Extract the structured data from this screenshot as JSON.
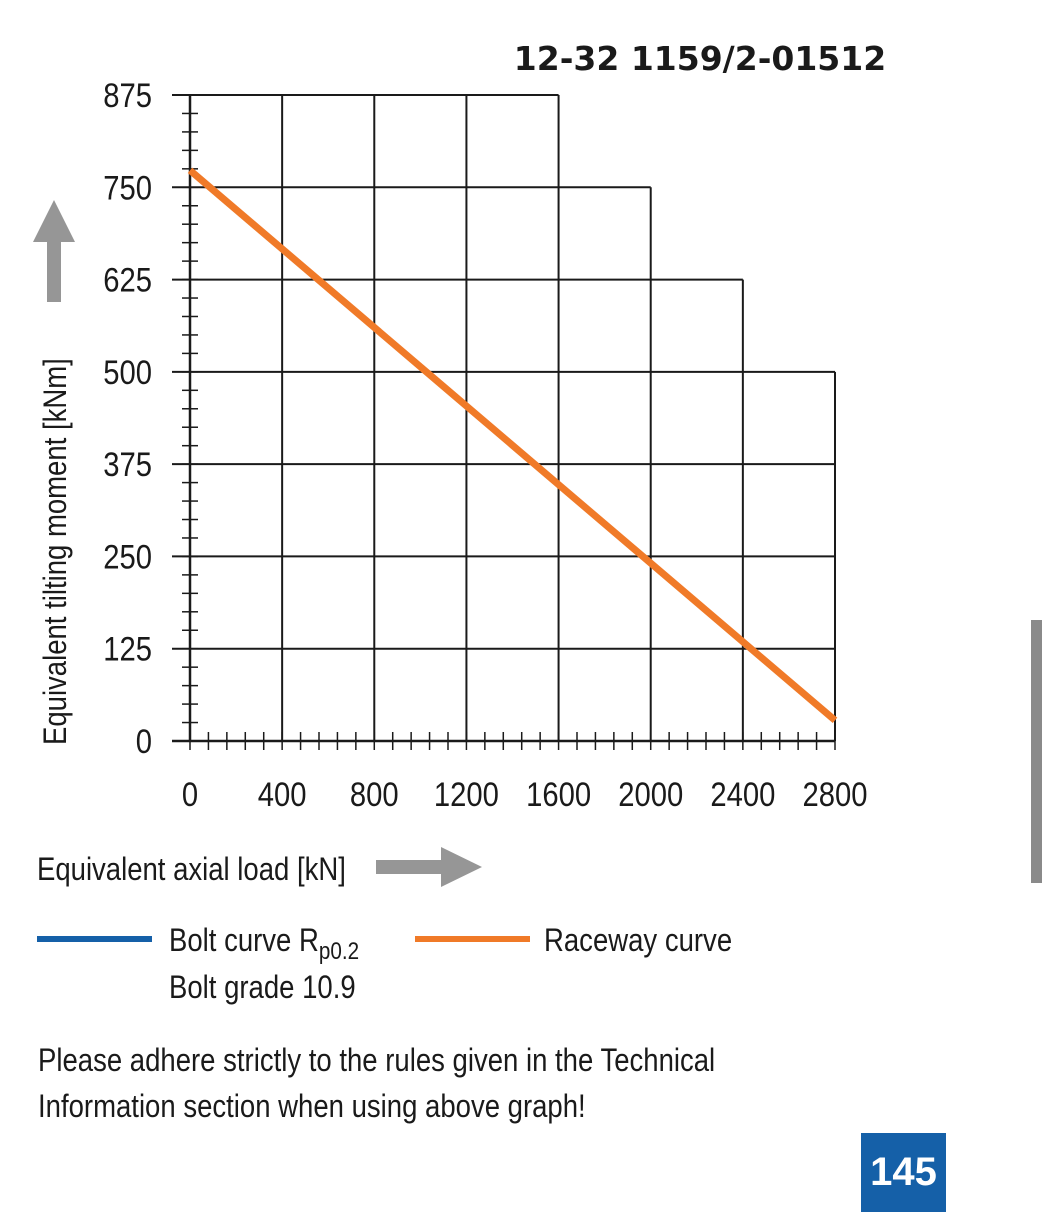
{
  "figure_code": "12-32 1159/2-01512",
  "chart_data": {
    "type": "line",
    "xlabel": "Equivalent axial load [kN]",
    "ylabel": "Equivalent tilting moment [kNm]",
    "xlim": [
      0,
      2800
    ],
    "ylim": [
      0,
      875
    ],
    "x_ticks": [
      0,
      400,
      800,
      1200,
      1600,
      2000,
      2400,
      2800
    ],
    "y_ticks": [
      0,
      125,
      250,
      375,
      500,
      625,
      750,
      875
    ],
    "grid": true,
    "grid_steps": [
      {
        "x_max": 1600,
        "y_max": 875
      },
      {
        "x_max": 2000,
        "y_max": 750
      },
      {
        "x_max": 2400,
        "y_max": 625
      },
      {
        "x_max": 2800,
        "y_max": 500
      }
    ],
    "series": [
      {
        "name": "Raceway curve",
        "color": "#f07a28",
        "x": [
          0,
          2800
        ],
        "y": [
          773,
          28
        ]
      }
    ]
  },
  "legend": {
    "bolt_label": "Bolt curve  R",
    "bolt_sub": "p0.2",
    "bolt_grade": "Bolt grade 10.9",
    "bolt_color": "#1560a8",
    "raceway_label": "Raceway curve",
    "raceway_color": "#f07a28"
  },
  "note": {
    "line1": "Please adhere strictly to the rules given in the Technical",
    "line2": "Information section when using above graph!"
  },
  "page_number": "145",
  "icons": {
    "y_axis_arrow": "arrow-up-icon",
    "x_axis_arrow": "arrow-right-icon"
  }
}
